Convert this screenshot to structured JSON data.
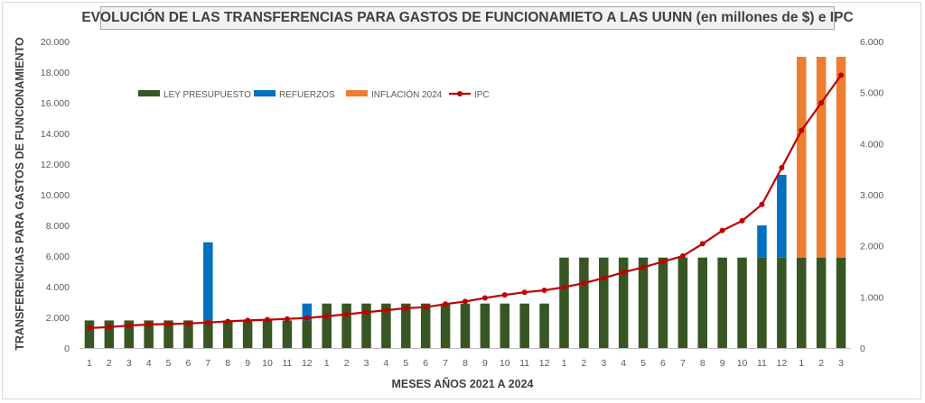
{
  "chart_data": {
    "type": "bar",
    "title": "EVOLUCIÓN DE LAS TRANSFERENCIAS PARA GASTOS DE FUNCIONAMIETO A LAS UUNN (en millones de $) e IPC",
    "xlabel": "MESES AÑOS 2021  A 2024",
    "ylabel": "TRANSFERENCIAS PARA GASTOS DE FUNCIONAMIENTO",
    "y2label": "",
    "ylim": [
      0,
      20000
    ],
    "y2lim": [
      0,
      6000
    ],
    "y_ticks": [
      "0",
      "2.000",
      "4.000",
      "6.000",
      "8.000",
      "10.000",
      "12.000",
      "14.000",
      "16.000",
      "18.000",
      "20.000"
    ],
    "y2_ticks": [
      "0",
      "1.000",
      "2.000",
      "3.000",
      "4.000",
      "5.000",
      "6.000"
    ],
    "categories": [
      "1",
      "2",
      "3",
      "4",
      "5",
      "6",
      "7",
      "8",
      "9",
      "10",
      "11",
      "12",
      "1",
      "2",
      "3",
      "4",
      "5",
      "6",
      "7",
      "8",
      "9",
      "10",
      "11",
      "12",
      "1",
      "2",
      "3",
      "4",
      "5",
      "6",
      "7",
      "8",
      "9",
      "10",
      "11",
      "12",
      "1",
      "2",
      "3"
    ],
    "legend_position": "top-left",
    "grid": false,
    "series": [
      {
        "name": "LEY PRESUPUESTO",
        "kind": "bar",
        "axis": "left",
        "color": "#375623",
        "values": [
          1800,
          1800,
          1800,
          1800,
          1800,
          1800,
          1800,
          1800,
          1800,
          1800,
          1800,
          1800,
          2900,
          2900,
          2900,
          2900,
          2900,
          2900,
          2900,
          2900,
          2900,
          2900,
          2900,
          2900,
          5900,
          5900,
          5900,
          5900,
          5900,
          5900,
          5900,
          5900,
          5900,
          5900,
          5900,
          5900,
          5900,
          5900,
          5900
        ]
      },
      {
        "name": "REFUERZOS",
        "kind": "bar",
        "axis": "left",
        "color": "#0070c0",
        "values": [
          0,
          0,
          0,
          0,
          0,
          0,
          5100,
          0,
          0,
          0,
          0,
          1100,
          0,
          0,
          0,
          0,
          0,
          0,
          0,
          0,
          0,
          0,
          0,
          0,
          0,
          0,
          0,
          0,
          0,
          0,
          0,
          0,
          0,
          0,
          2100,
          5400,
          0,
          0,
          0
        ]
      },
      {
        "name": "INFLACIÓN 2024",
        "kind": "bar",
        "axis": "left",
        "color": "#ed7d31",
        "values": [
          0,
          0,
          0,
          0,
          0,
          0,
          0,
          0,
          0,
          0,
          0,
          0,
          0,
          0,
          0,
          0,
          0,
          0,
          0,
          0,
          0,
          0,
          0,
          0,
          0,
          0,
          0,
          0,
          0,
          0,
          0,
          0,
          0,
          0,
          0,
          0,
          13100,
          13100,
          13100
        ]
      },
      {
        "name": "IPC",
        "kind": "line",
        "axis": "right",
        "color": "#c00000",
        "values": [
          390,
          410,
          440,
          460,
          470,
          480,
          500,
          520,
          540,
          555,
          570,
          590,
          620,
          660,
          700,
          740,
          780,
          800,
          860,
          910,
          980,
          1040,
          1090,
          1130,
          1190,
          1270,
          1370,
          1480,
          1580,
          1690,
          1800,
          2040,
          2300,
          2490,
          2810,
          3530,
          4260,
          4800,
          5340
        ]
      }
    ]
  }
}
